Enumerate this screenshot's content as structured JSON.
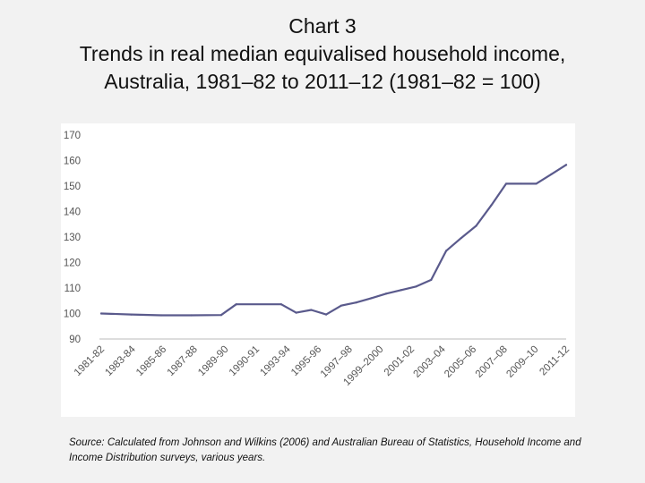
{
  "title": "Chart 3",
  "subtitle_lines": [
    "Trends in real median equivalised household income,",
    "Australia, 1981–82 to 2011–12 (1981–82 = 100)"
  ],
  "source_note": "Source: Calculated from Johnson and Wilkins (2006) and Australian Bureau of Statistics, Household Income and Income Distribution surveys, various years.",
  "colors": {
    "line": "#5a5a8c",
    "axis_text": "#555555",
    "card": "#ffffff",
    "background": "#f2f2f2"
  },
  "chart_data": {
    "type": "line",
    "title": "Chart 3",
    "subtitle": "Trends in real median equivalised household income, Australia, 1981–82 to 2011–12 (1981–82 = 100)",
    "xlabel": "",
    "ylabel": "",
    "ylim": [
      90,
      170
    ],
    "yticks": [
      90,
      100,
      110,
      120,
      130,
      140,
      150,
      160,
      170
    ],
    "grid": false,
    "legend": "none",
    "x_tick_labels": [
      "1981-82",
      "1983-84",
      "1985-86",
      "1987-88",
      "1989-90",
      "1990-91",
      "1993-94",
      "1995-96",
      "1997–98",
      "1999–2000",
      "2001-02",
      "2003–04",
      "2005–06",
      "2007–08",
      "2009–10",
      "2011-12"
    ],
    "series": [
      {
        "points": [
          {
            "x": 1981.5,
            "y": 100
          },
          {
            "x": 1983.5,
            "y": 99.6
          },
          {
            "x": 1985.5,
            "y": 99.3
          },
          {
            "x": 1987.5,
            "y": 99.3
          },
          {
            "x": 1989.5,
            "y": 99.4
          },
          {
            "x": 1990.5,
            "y": 103.6
          },
          {
            "x": 1993.5,
            "y": 103.6
          },
          {
            "x": 1994.5,
            "y": 100.3
          },
          {
            "x": 1995.5,
            "y": 101.4
          },
          {
            "x": 1996.5,
            "y": 99.6
          },
          {
            "x": 1997.5,
            "y": 103.1
          },
          {
            "x": 1998.5,
            "y": 104.3
          },
          {
            "x": 1999.5,
            "y": 106.0
          },
          {
            "x": 2000.5,
            "y": 107.8
          },
          {
            "x": 2001.5,
            "y": 109.2
          },
          {
            "x": 2002.5,
            "y": 110.6
          },
          {
            "x": 2003.5,
            "y": 113.2
          },
          {
            "x": 2004.5,
            "y": 124.6
          },
          {
            "x": 2005.5,
            "y": 129.6
          },
          {
            "x": 2006.5,
            "y": 134.4
          },
          {
            "x": 2007.5,
            "y": 142.4
          },
          {
            "x": 2008.5,
            "y": 150.9
          },
          {
            "x": 2009.5,
            "y": 150.9
          },
          {
            "x": 2010.5,
            "y": 150.9
          },
          {
            "x": 2011.5,
            "y": 154.6
          },
          {
            "x": 2012.5,
            "y": 158.3
          }
        ]
      }
    ]
  }
}
